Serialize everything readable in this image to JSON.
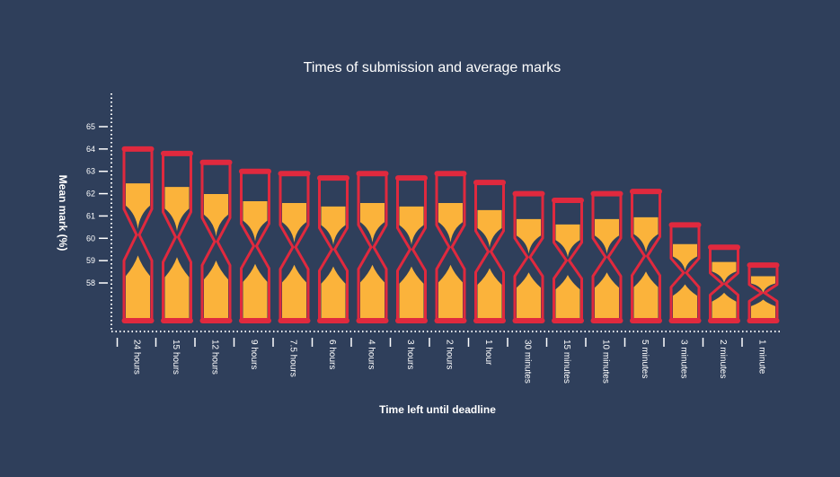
{
  "chart_data": {
    "type": "bar",
    "title": "Times of submission and average marks",
    "xlabel": "Time left until deadline",
    "ylabel": "Mean mark (%)",
    "ylim": [
      57,
      65
    ],
    "yticks": [
      "65",
      "64",
      "63",
      "62",
      "61",
      "60",
      "59",
      "58"
    ],
    "categories": [
      "24 hours",
      "15 hours",
      "12 hours",
      "9 hours",
      "7.5 hours",
      "6 hours",
      "4 hours",
      "3 hours",
      "2 hours",
      "1 hour",
      "30 minutes",
      "15 minutes",
      "10 minutes",
      "5 minutes",
      "3 minutes",
      "2 minutes",
      "1 minute"
    ],
    "values": [
      64.0,
      63.8,
      63.4,
      63.0,
      62.9,
      62.7,
      62.9,
      62.7,
      62.9,
      62.5,
      62.0,
      61.7,
      62.0,
      62.1,
      60.6,
      59.6,
      58.8
    ],
    "grid": false,
    "legend": "none",
    "colors": {
      "background": "#2f3f5b",
      "frame": "#e0293e",
      "sand": "#fbb33b",
      "text": "#ffffff"
    }
  }
}
